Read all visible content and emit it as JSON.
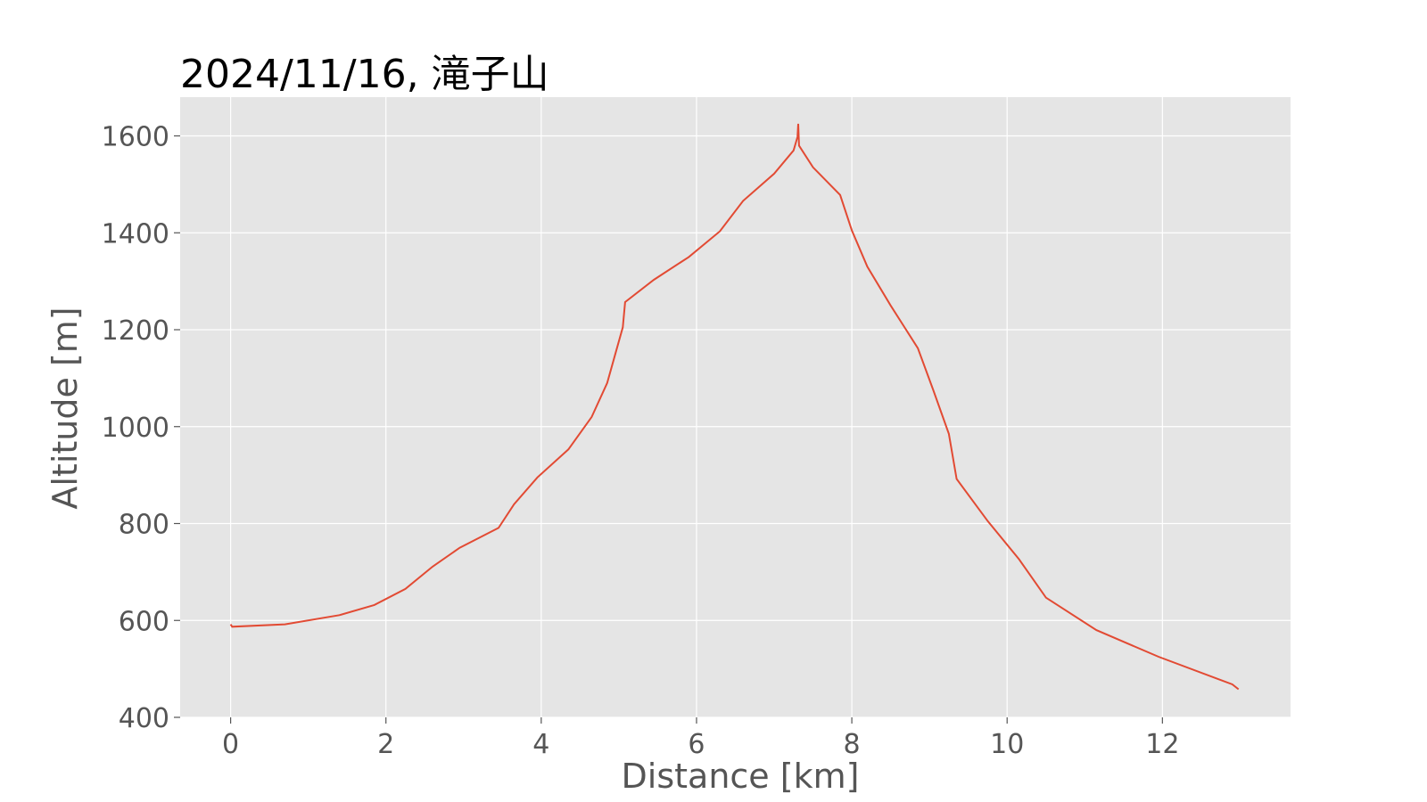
{
  "chart_data": {
    "type": "line",
    "title": "2024/11/16, 滝子山",
    "xlabel": "Distance [km]",
    "ylabel": "Altitude [m]",
    "xlim": [
      -0.65,
      13.65
    ],
    "ylim": [
      400,
      1680
    ],
    "xticks": [
      0,
      2,
      4,
      6,
      8,
      10,
      12
    ],
    "yticks": [
      400,
      600,
      800,
      1000,
      1200,
      1400,
      1600
    ],
    "grid": true,
    "colors": {
      "background": "#e5e5e5",
      "grid": "#ffffff",
      "line": "#e24a33",
      "tick_text": "#555555",
      "title_text": "#000000"
    },
    "series": [
      {
        "x": [
          0,
          0.02,
          0.7,
          1.4,
          1.85,
          2.25,
          2.6,
          2.95,
          3.45,
          3.65,
          3.95,
          4.35,
          4.65,
          4.85,
          4.95,
          5.05,
          5.08,
          5.45,
          5.9,
          6.3,
          6.6,
          7.0,
          7.25,
          7.3,
          7.31,
          7.32,
          7.5,
          7.85,
          8.0,
          8.2,
          8.5,
          8.85,
          9.05,
          9.25,
          9.35,
          9.75,
          10.15,
          10.5,
          11.15,
          11.95,
          12.9,
          12.98
        ],
        "y": [
          592,
          587,
          592,
          611,
          632,
          665,
          711,
          750,
          791,
          840,
          895,
          953,
          1020,
          1090,
          1148,
          1205,
          1257,
          1303,
          1350,
          1403,
          1466,
          1522,
          1570,
          1598,
          1625,
          1580,
          1535,
          1478,
          1405,
          1330,
          1250,
          1162,
          1075,
          985,
          892,
          805,
          727,
          647,
          580,
          525,
          468,
          458
        ]
      }
    ]
  }
}
